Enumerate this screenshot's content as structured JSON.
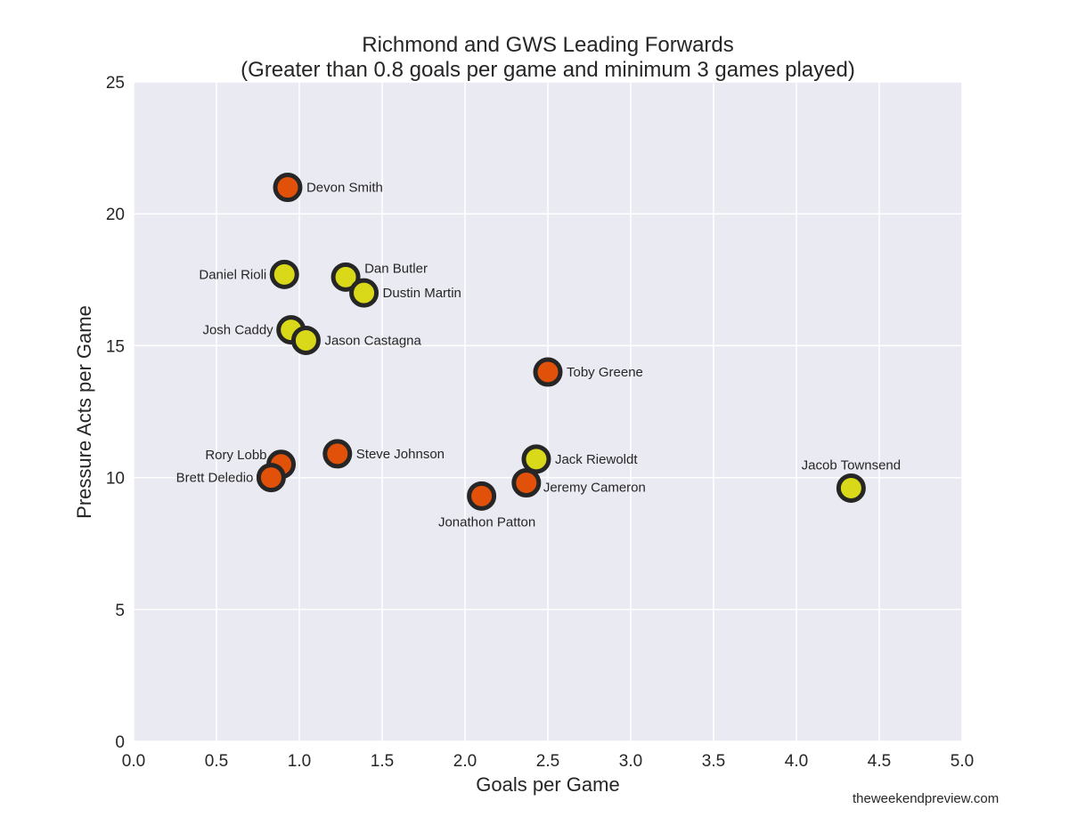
{
  "chart_data": {
    "type": "scatter",
    "title": "Richmond and GWS Leading Forwards",
    "subtitle": "(Greater than 0.8 goals per game and minimum 3 games played)",
    "xlabel": "Goals per Game",
    "ylabel": "Pressure Acts per Game",
    "xlim": [
      0,
      5
    ],
    "ylim": [
      0,
      25
    ],
    "xticks": [
      0.0,
      0.5,
      1.0,
      1.5,
      2.0,
      2.5,
      3.0,
      3.5,
      4.0,
      4.5,
      5.0
    ],
    "xtick_labels": [
      "0.0",
      "0.5",
      "1.0",
      "1.5",
      "2.0",
      "2.5",
      "3.0",
      "3.5",
      "4.0",
      "4.5",
      "5.0"
    ],
    "yticks": [
      0,
      5,
      10,
      15,
      20,
      25
    ],
    "ytick_labels": [
      "0",
      "5",
      "10",
      "15",
      "20",
      "25"
    ],
    "grid": true,
    "colors": {
      "Richmond": "#d9d919",
      "GWS": "#e2510a",
      "edge": "#262626",
      "background": "#eaeaf2",
      "grid": "#ffffff"
    },
    "points": [
      {
        "name": "Devon Smith",
        "team": "GWS",
        "x": 0.93,
        "y": 21.0,
        "label_pos": "right"
      },
      {
        "name": "Daniel Rioli",
        "team": "Richmond",
        "x": 0.91,
        "y": 17.7,
        "label_pos": "left"
      },
      {
        "name": "Dan Butler",
        "team": "Richmond",
        "x": 1.28,
        "y": 17.6,
        "label_pos": "upper-right"
      },
      {
        "name": "Dustin Martin",
        "team": "Richmond",
        "x": 1.39,
        "y": 17.0,
        "label_pos": "right"
      },
      {
        "name": "Josh Caddy",
        "team": "Richmond",
        "x": 0.95,
        "y": 15.6,
        "label_pos": "left"
      },
      {
        "name": "Jason Castagna",
        "team": "Richmond",
        "x": 1.04,
        "y": 15.2,
        "label_pos": "right"
      },
      {
        "name": "Toby Greene",
        "team": "GWS",
        "x": 2.5,
        "y": 14.0,
        "label_pos": "right"
      },
      {
        "name": "Rory Lobb",
        "team": "GWS",
        "x": 0.89,
        "y": 10.5,
        "label_pos": "upper-left"
      },
      {
        "name": "Brett Deledio",
        "team": "GWS",
        "x": 0.83,
        "y": 10.0,
        "label_pos": "left"
      },
      {
        "name": "Steve Johnson",
        "team": "GWS",
        "x": 1.23,
        "y": 10.9,
        "label_pos": "right"
      },
      {
        "name": "Jack Riewoldt",
        "team": "Richmond",
        "x": 2.43,
        "y": 10.7,
        "label_pos": "right"
      },
      {
        "name": "Jeremy Cameron",
        "team": "GWS",
        "x": 2.37,
        "y": 9.8,
        "label_pos": "lower-right"
      },
      {
        "name": "Jonathon Patton",
        "team": "GWS",
        "x": 2.1,
        "y": 9.3,
        "label_pos": "below"
      },
      {
        "name": "Jacob Townsend",
        "team": "Richmond",
        "x": 4.33,
        "y": 9.6,
        "label_pos": "above"
      }
    ]
  },
  "watermark": "theweekendpreview.com"
}
